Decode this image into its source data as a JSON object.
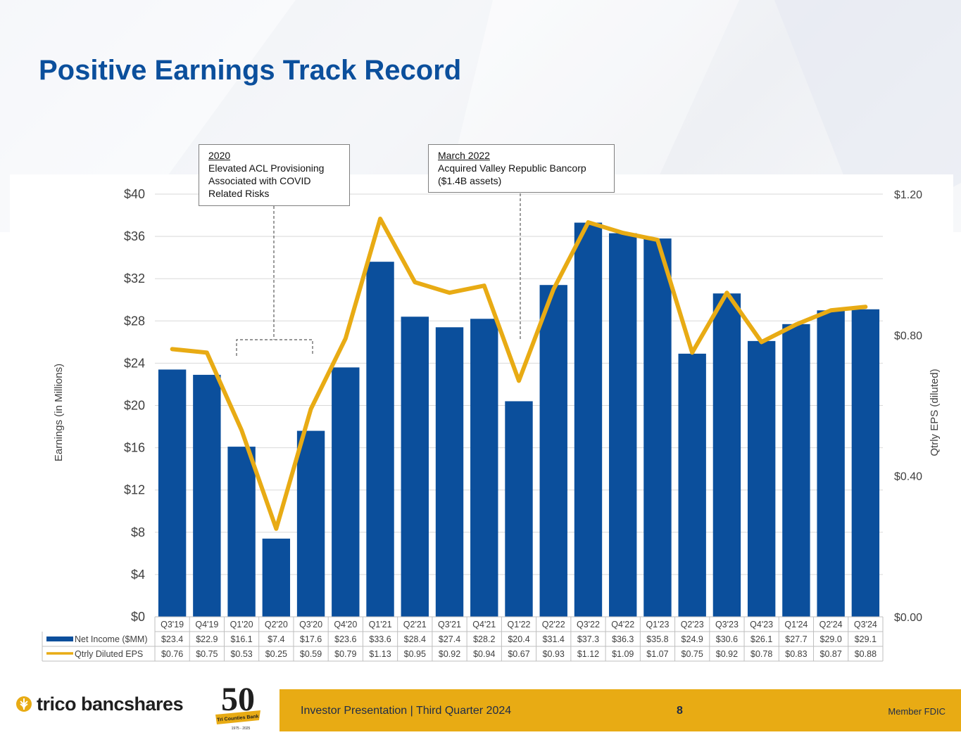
{
  "title": "Positive Earnings Track Record",
  "callouts": [
    {
      "heading": "2020",
      "lines": [
        "Elevated ACL Provisioning",
        "Associated with COVID",
        "Related Risks"
      ]
    },
    {
      "heading": "March 2022",
      "lines": [
        "Acquired Valley Republic Bancorp",
        "($1.4B assets)"
      ]
    }
  ],
  "chart_data": {
    "type": "bar",
    "title": "",
    "categories": [
      "Q3'19",
      "Q4'19",
      "Q1'20",
      "Q2'20",
      "Q3'20",
      "Q4'20",
      "Q1'21",
      "Q2'21",
      "Q3'21",
      "Q4'21",
      "Q1'22",
      "Q2'22",
      "Q3'22",
      "Q4'22",
      "Q1'23",
      "Q2'23",
      "Q3'23",
      "Q4'23",
      "Q1'24",
      "Q2'24",
      "Q3'24"
    ],
    "series": [
      {
        "name": "Net Income ($MM)",
        "type": "bar",
        "axis": "left",
        "color": "#0b4f9c",
        "values": [
          23.4,
          22.9,
          16.1,
          7.4,
          17.6,
          23.6,
          33.6,
          28.4,
          27.4,
          28.2,
          20.4,
          31.4,
          37.3,
          36.3,
          35.8,
          24.9,
          30.6,
          26.1,
          27.7,
          29.0,
          29.1
        ],
        "labels": [
          "$23.4",
          "$22.9",
          "$16.1",
          "$7.4",
          "$17.6",
          "$23.6",
          "$33.6",
          "$28.4",
          "$27.4",
          "$28.2",
          "$20.4",
          "$31.4",
          "$37.3",
          "$36.3",
          "$35.8",
          "$24.9",
          "$30.6",
          "$26.1",
          "$27.7",
          "$29.0",
          "$29.1"
        ]
      },
      {
        "name": "Qtrly Diluted EPS",
        "type": "line",
        "axis": "right",
        "color": "#e8ab14",
        "values": [
          0.76,
          0.75,
          0.53,
          0.25,
          0.59,
          0.79,
          1.13,
          0.95,
          0.92,
          0.94,
          0.67,
          0.93,
          1.12,
          1.09,
          1.07,
          0.75,
          0.92,
          0.78,
          0.83,
          0.87,
          0.88
        ],
        "labels": [
          "$0.76",
          "$0.75",
          "$0.53",
          "$0.25",
          "$0.59",
          "$0.79",
          "$1.13",
          "$0.95",
          "$0.92",
          "$0.94",
          "$0.67",
          "$0.93",
          "$1.12",
          "$1.09",
          "$1.07",
          "$0.75",
          "$0.92",
          "$0.78",
          "$0.83",
          "$0.87",
          "$0.88"
        ]
      }
    ],
    "ylabel": "Earnings (in Millions)",
    "ylim": [
      0,
      40
    ],
    "yticks": [
      "$0",
      "$4",
      "$8",
      "$12",
      "$16",
      "$20",
      "$24",
      "$28",
      "$32",
      "$36",
      "$40"
    ],
    "y2label": "Qtrly EPS (diluted)",
    "y2lim": [
      0,
      1.2
    ],
    "y2ticks": [
      "$0.00",
      "$0.40",
      "$0.80",
      "$1.20"
    ],
    "grid": true,
    "legend": "data-table"
  },
  "footer": {
    "logo_text": "trico bancshares",
    "anniversary_number": "50",
    "anniversary_ribbon": "Tri Counties Bank",
    "anniversary_years": "1975 - 2025",
    "presentation": "Investor Presentation  |  Third Quarter 2024",
    "page": "8",
    "member": "Member FDIC"
  },
  "colors": {
    "brand_blue": "#0b4f9c",
    "brand_gold": "#e8ab14"
  }
}
